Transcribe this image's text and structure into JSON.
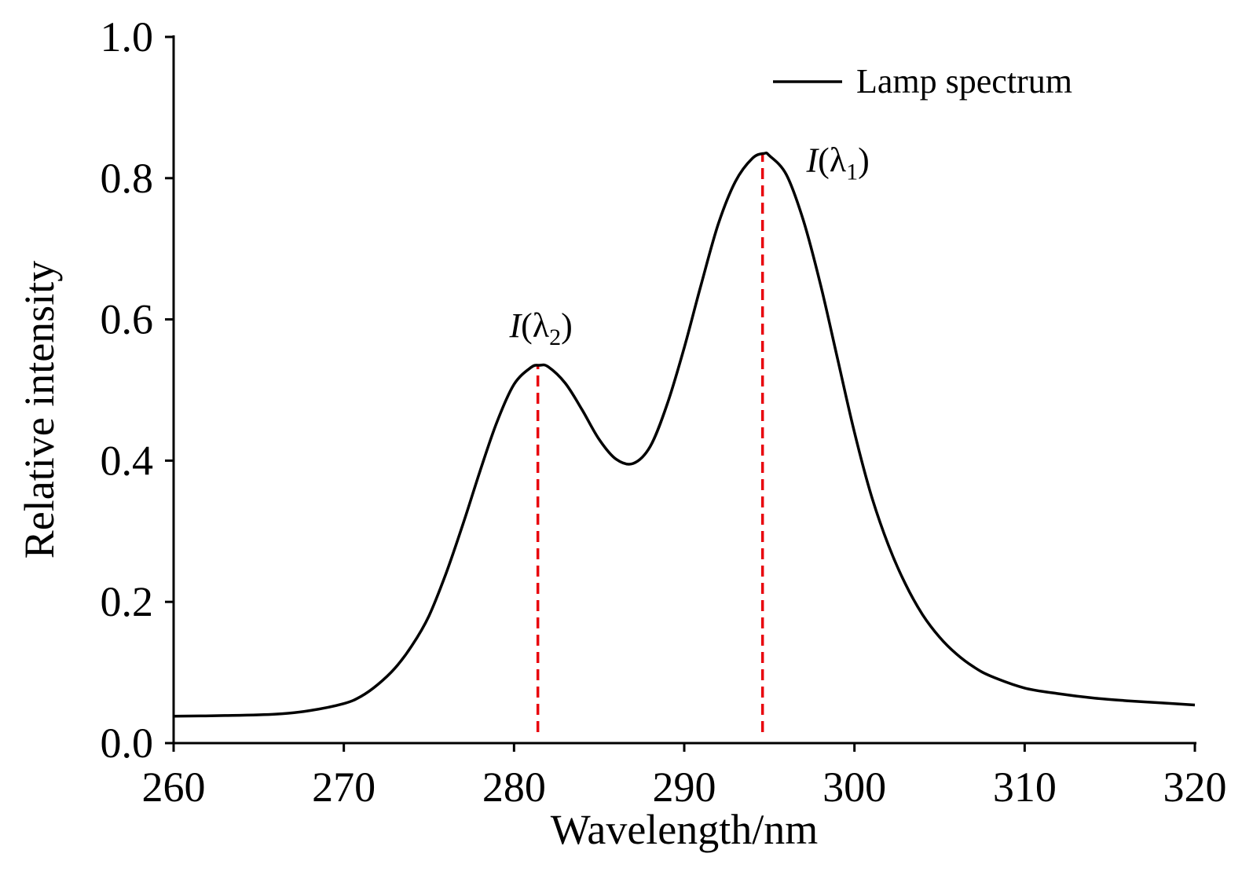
{
  "chart_data": {
    "type": "line",
    "title": "",
    "xlabel": "Wavelength/nm",
    "ylabel": "Relative intensity",
    "xlim": [
      260,
      320
    ],
    "ylim": [
      0.0,
      1.0
    ],
    "xticks": [
      "260",
      "270",
      "280",
      "290",
      "300",
      "310",
      "320"
    ],
    "yticks": [
      "0.0",
      "0.2",
      "0.4",
      "0.6",
      "0.8",
      "1.0"
    ],
    "grid": false,
    "legend_position": "top-right",
    "series": [
      {
        "name": "Lamp spectrum",
        "color": "#000000",
        "x": [
          260,
          263,
          266,
          268,
          270,
          271,
          272,
          273,
          274,
          275,
          276,
          277,
          278,
          279,
          280,
          281,
          281.5,
          282,
          283,
          284,
          285,
          286,
          287,
          288,
          289,
          290,
          291,
          292,
          293,
          294,
          294.7,
          295,
          296,
          297,
          298,
          299,
          300,
          301,
          302,
          303,
          304,
          305,
          306,
          307,
          308,
          310,
          312,
          314,
          316,
          318,
          320
        ],
        "y": [
          0.038,
          0.039,
          0.041,
          0.046,
          0.056,
          0.066,
          0.083,
          0.106,
          0.138,
          0.18,
          0.24,
          0.31,
          0.385,
          0.455,
          0.508,
          0.532,
          0.535,
          0.533,
          0.51,
          0.472,
          0.43,
          0.402,
          0.396,
          0.42,
          0.48,
          0.56,
          0.65,
          0.735,
          0.795,
          0.828,
          0.835,
          0.832,
          0.805,
          0.74,
          0.65,
          0.545,
          0.44,
          0.35,
          0.28,
          0.225,
          0.182,
          0.15,
          0.126,
          0.108,
          0.095,
          0.078,
          0.07,
          0.064,
          0.06,
          0.057,
          0.054
        ]
      }
    ],
    "markers": [
      {
        "x": 281.4,
        "y": 0.535,
        "color": "#e8000b",
        "style": "dashed"
      },
      {
        "x": 294.6,
        "y": 0.835,
        "color": "#e8000b",
        "style": "dashed"
      }
    ],
    "annotations": {
      "lambda2": {
        "italic": "I",
        "open": "(λ",
        "sub": "2",
        "close": ")"
      },
      "lambda1": {
        "italic": "I",
        "open": "(λ",
        "sub": "1",
        "close": ")"
      }
    }
  }
}
